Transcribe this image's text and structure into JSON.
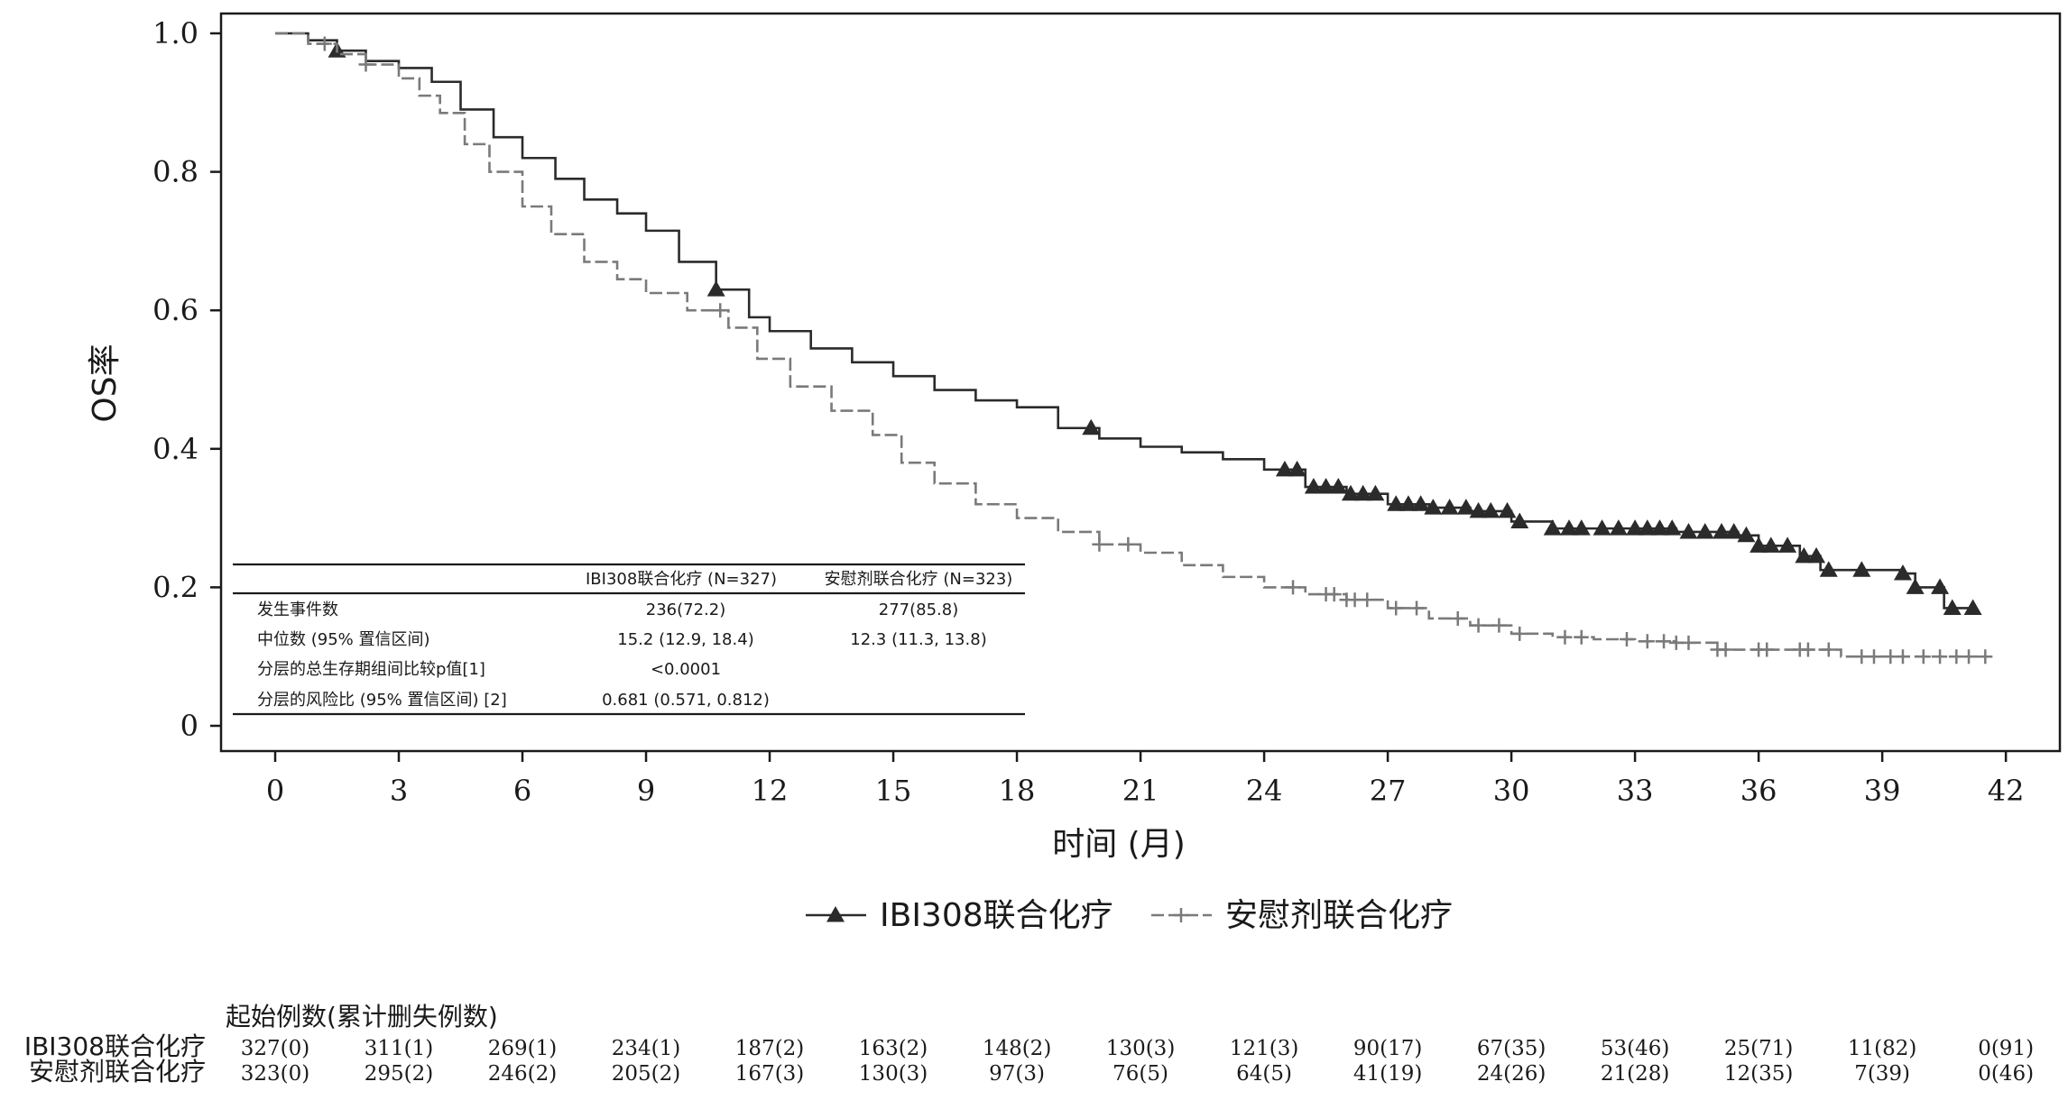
{
  "colors": {
    "ibi": "#2b2b2b",
    "placebo": "#7a7a7a",
    "axis": "#1a1a1a"
  },
  "chart_data": {
    "type": "line",
    "subtype": "kaplan-meier",
    "title": "",
    "xlabel": "时间 (月)",
    "ylabel": "OS率",
    "xlim": [
      0,
      42
    ],
    "ylim": [
      0,
      1
    ],
    "x_ticks": [
      0,
      3,
      6,
      9,
      12,
      15,
      18,
      21,
      24,
      27,
      30,
      33,
      36,
      39,
      42
    ],
    "y_ticks": [
      0,
      0.2,
      0.4,
      0.6,
      0.8,
      1.0
    ],
    "y_tick_labels": [
      "0",
      "0.2",
      "0.4",
      "0.6",
      "0.8",
      "1.0"
    ],
    "grid": false,
    "legend_position": "bottom-center",
    "series": [
      {
        "name": "IBI308联合化疗",
        "marker": "triangle",
        "x": [
          0,
          0.8,
          1.5,
          2.2,
          3,
          3.8,
          4.5,
          5.3,
          6,
          6.8,
          7.5,
          8.3,
          9,
          9.8,
          10.7,
          11.5,
          12,
          13,
          14,
          15,
          16,
          17,
          18,
          19,
          20,
          21,
          22,
          23,
          24,
          25,
          26,
          27,
          28,
          29,
          30,
          31,
          32,
          33,
          34,
          35,
          35.5,
          36,
          37,
          37.5,
          38.5,
          39.5,
          39.8,
          40.5,
          41,
          41.2
        ],
        "y": [
          1.0,
          0.99,
          0.975,
          0.96,
          0.95,
          0.93,
          0.89,
          0.85,
          0.82,
          0.79,
          0.76,
          0.74,
          0.715,
          0.67,
          0.63,
          0.59,
          0.57,
          0.545,
          0.525,
          0.505,
          0.485,
          0.47,
          0.46,
          0.43,
          0.415,
          0.403,
          0.395,
          0.385,
          0.37,
          0.345,
          0.335,
          0.32,
          0.315,
          0.31,
          0.295,
          0.285,
          0.285,
          0.285,
          0.28,
          0.28,
          0.275,
          0.26,
          0.245,
          0.225,
          0.225,
          0.22,
          0.2,
          0.17,
          0.17,
          0.17
        ],
        "censor_x": [
          1.5,
          10.7,
          19.8,
          24.5,
          24.8,
          25.2,
          25.5,
          25.8,
          26.1,
          26.4,
          26.7,
          27.2,
          27.5,
          27.8,
          28.1,
          28.5,
          28.9,
          29.2,
          29.5,
          29.9,
          30.2,
          31,
          31.4,
          31.7,
          32.2,
          32.6,
          33,
          33.3,
          33.6,
          33.9,
          34.3,
          34.7,
          35.1,
          35.4,
          35.7,
          36,
          36.3,
          36.7,
          37.1,
          37.4,
          37.7,
          38.5,
          39.5,
          39.8,
          40.4,
          40.7,
          41.2
        ]
      },
      {
        "name": "安慰剂联合化疗",
        "marker": "plus",
        "x": [
          0,
          0.8,
          1.5,
          2.2,
          3,
          3.5,
          4,
          4.6,
          5.2,
          6,
          6.7,
          7.5,
          8.3,
          9,
          10,
          11,
          11.7,
          12.5,
          13.5,
          14.5,
          15.2,
          16,
          17,
          18,
          19,
          20,
          21,
          22,
          23,
          24,
          25,
          26,
          27,
          28,
          29,
          30,
          31,
          32,
          33,
          34,
          35,
          36,
          37,
          38,
          39,
          40,
          41,
          41.5
        ],
        "y": [
          1.0,
          0.985,
          0.97,
          0.955,
          0.935,
          0.91,
          0.885,
          0.84,
          0.8,
          0.75,
          0.71,
          0.67,
          0.645,
          0.625,
          0.6,
          0.575,
          0.53,
          0.49,
          0.455,
          0.42,
          0.38,
          0.35,
          0.32,
          0.3,
          0.28,
          0.262,
          0.25,
          0.232,
          0.215,
          0.2,
          0.19,
          0.182,
          0.17,
          0.155,
          0.145,
          0.133,
          0.128,
          0.125,
          0.122,
          0.12,
          0.11,
          0.11,
          0.11,
          0.1,
          0.1,
          0.1,
          0.1,
          0.1
        ],
        "censor_x": [
          1.2,
          2.2,
          10.8,
          20,
          20.7,
          24.7,
          25.5,
          25.7,
          26,
          26.2,
          26.5,
          27.2,
          27.7,
          28.7,
          29.2,
          29.7,
          30.2,
          31.3,
          31.7,
          32.8,
          33.3,
          33.7,
          34,
          34.3,
          35,
          35.2,
          36,
          36.2,
          37,
          37.2,
          37.7,
          38.5,
          38.8,
          39.2,
          39.5,
          40,
          40.4,
          40.8,
          41.1,
          41.5
        ]
      }
    ],
    "stats_table": {
      "col1": "IBI308联合化疗 (N=327)",
      "col2": "安慰剂联合化疗 (N=323)",
      "rows": [
        {
          "label": "发生事件数",
          "v1": "236(72.2)",
          "v2": "277(85.8)"
        },
        {
          "label": "中位数 (95% 置信区间)",
          "v1": "15.2 (12.9, 18.4)",
          "v2": "12.3 (11.3, 13.8)"
        },
        {
          "label": "分层的总生存期组间比较p值[1]",
          "v1": "<0.0001",
          "v2": ""
        },
        {
          "label": "分层的风险比 (95% 置信区间) [2]",
          "v1": "0.681 (0.571, 0.812)",
          "v2": ""
        }
      ]
    },
    "risk_table": {
      "title": "起始例数(累计删失例数)",
      "rows": [
        {
          "name": "IBI308联合化疗",
          "values": [
            "327(0)",
            "311(1)",
            "269(1)",
            "234(1)",
            "187(2)",
            "163(2)",
            "148(2)",
            "130(3)",
            "121(3)",
            "90(17)",
            "67(35)",
            "53(46)",
            "25(71)",
            "11(82)",
            "0(91)"
          ]
        },
        {
          "name": "安慰剂联合化疗",
          "values": [
            "323(0)",
            "295(2)",
            "246(2)",
            "205(2)",
            "167(3)",
            "130(3)",
            "97(3)",
            "76(5)",
            "64(5)",
            "41(19)",
            "24(26)",
            "21(28)",
            "12(35)",
            "7(39)",
            "0(46)"
          ]
        }
      ]
    }
  }
}
